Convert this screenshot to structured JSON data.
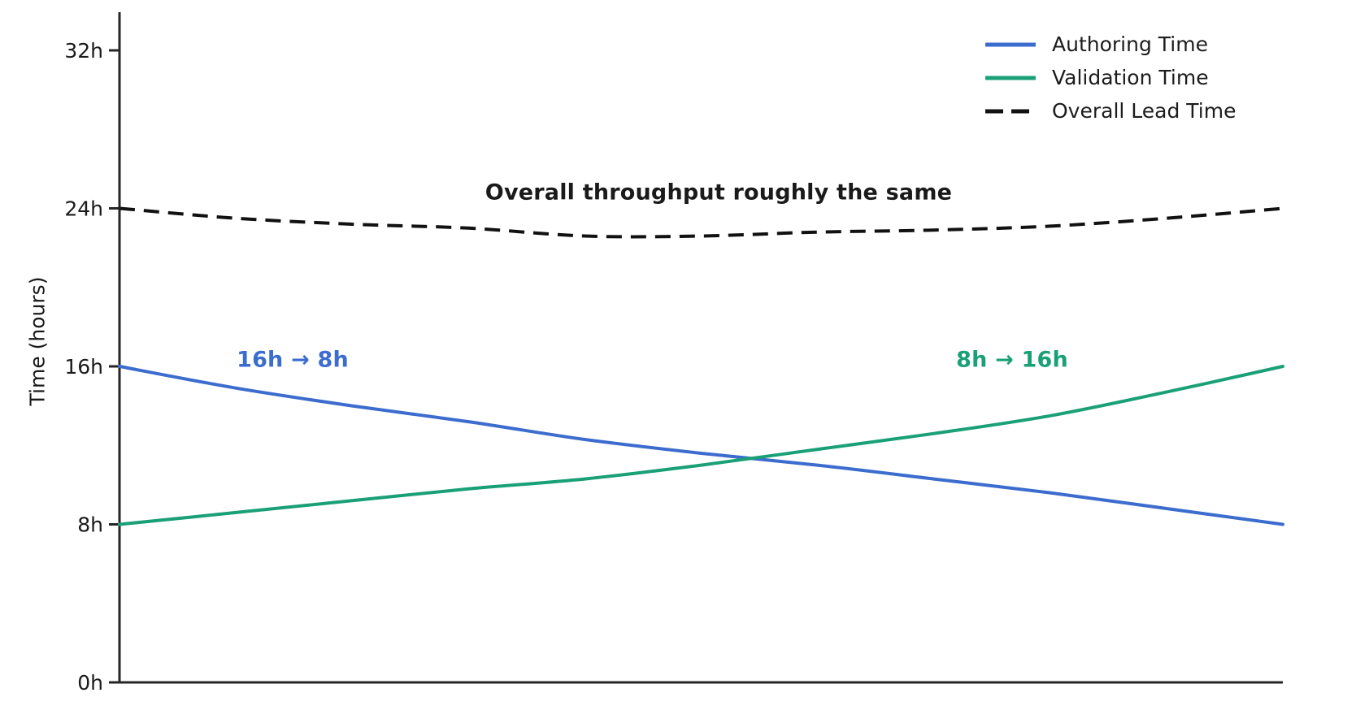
{
  "figure": {
    "background": "#ffffff",
    "text_color": "#1a1a1a",
    "axis_color": "#262626"
  },
  "y_axis": {
    "label": "Time (hours)",
    "ticks": [
      {
        "label": "0h",
        "value": 0
      },
      {
        "label": "8h",
        "value": 8
      },
      {
        "label": "16h",
        "value": 16
      },
      {
        "label": "24h",
        "value": 24
      },
      {
        "label": "32h",
        "value": 32
      }
    ]
  },
  "annotations": {
    "title": {
      "text": "Overall throughput roughly the same",
      "color": "#1a1a1a"
    },
    "authoring": {
      "text": "16h → 8h",
      "color": "#3b6cce"
    },
    "validation": {
      "text": "8h → 16h",
      "color": "#1aa077"
    }
  },
  "chart_data": {
    "type": "line",
    "x": [
      0,
      0.1,
      0.2,
      0.3,
      0.4,
      0.5,
      0.6,
      0.7,
      0.8,
      0.9,
      1.0
    ],
    "series": [
      {
        "name": "Authoring Time",
        "color": "#3b6cce",
        "style": "solid",
        "values": [
          16.0,
          14.9,
          14.0,
          13.2,
          12.3,
          11.6,
          11.0,
          10.3,
          9.6,
          8.8,
          8.0
        ]
      },
      {
        "name": "Validation Time",
        "color": "#1aa077",
        "style": "solid",
        "values": [
          8.0,
          8.6,
          9.2,
          9.8,
          10.3,
          11.0,
          11.8,
          12.6,
          13.5,
          14.7,
          16.0
        ]
      },
      {
        "name": "Overall Lead Time",
        "color": "#111111",
        "style": "dashed",
        "values": [
          24.0,
          23.5,
          23.2,
          23.0,
          22.6,
          22.6,
          22.8,
          22.9,
          23.1,
          23.5,
          24.0
        ]
      }
    ],
    "title": "Overall throughput roughly the same",
    "xlabel": "",
    "ylabel": "Time (hours)",
    "ylim": [
      0,
      32
    ],
    "grid": false,
    "legend_position": "upper right",
    "notes": "Authoring falls 16h to 8h, Validation rises 8h to 16h, lines cross near 11.3h; Overall Lead Time = sum, dips from 24h to about 22.6h mid-chart and returns to 24h"
  }
}
